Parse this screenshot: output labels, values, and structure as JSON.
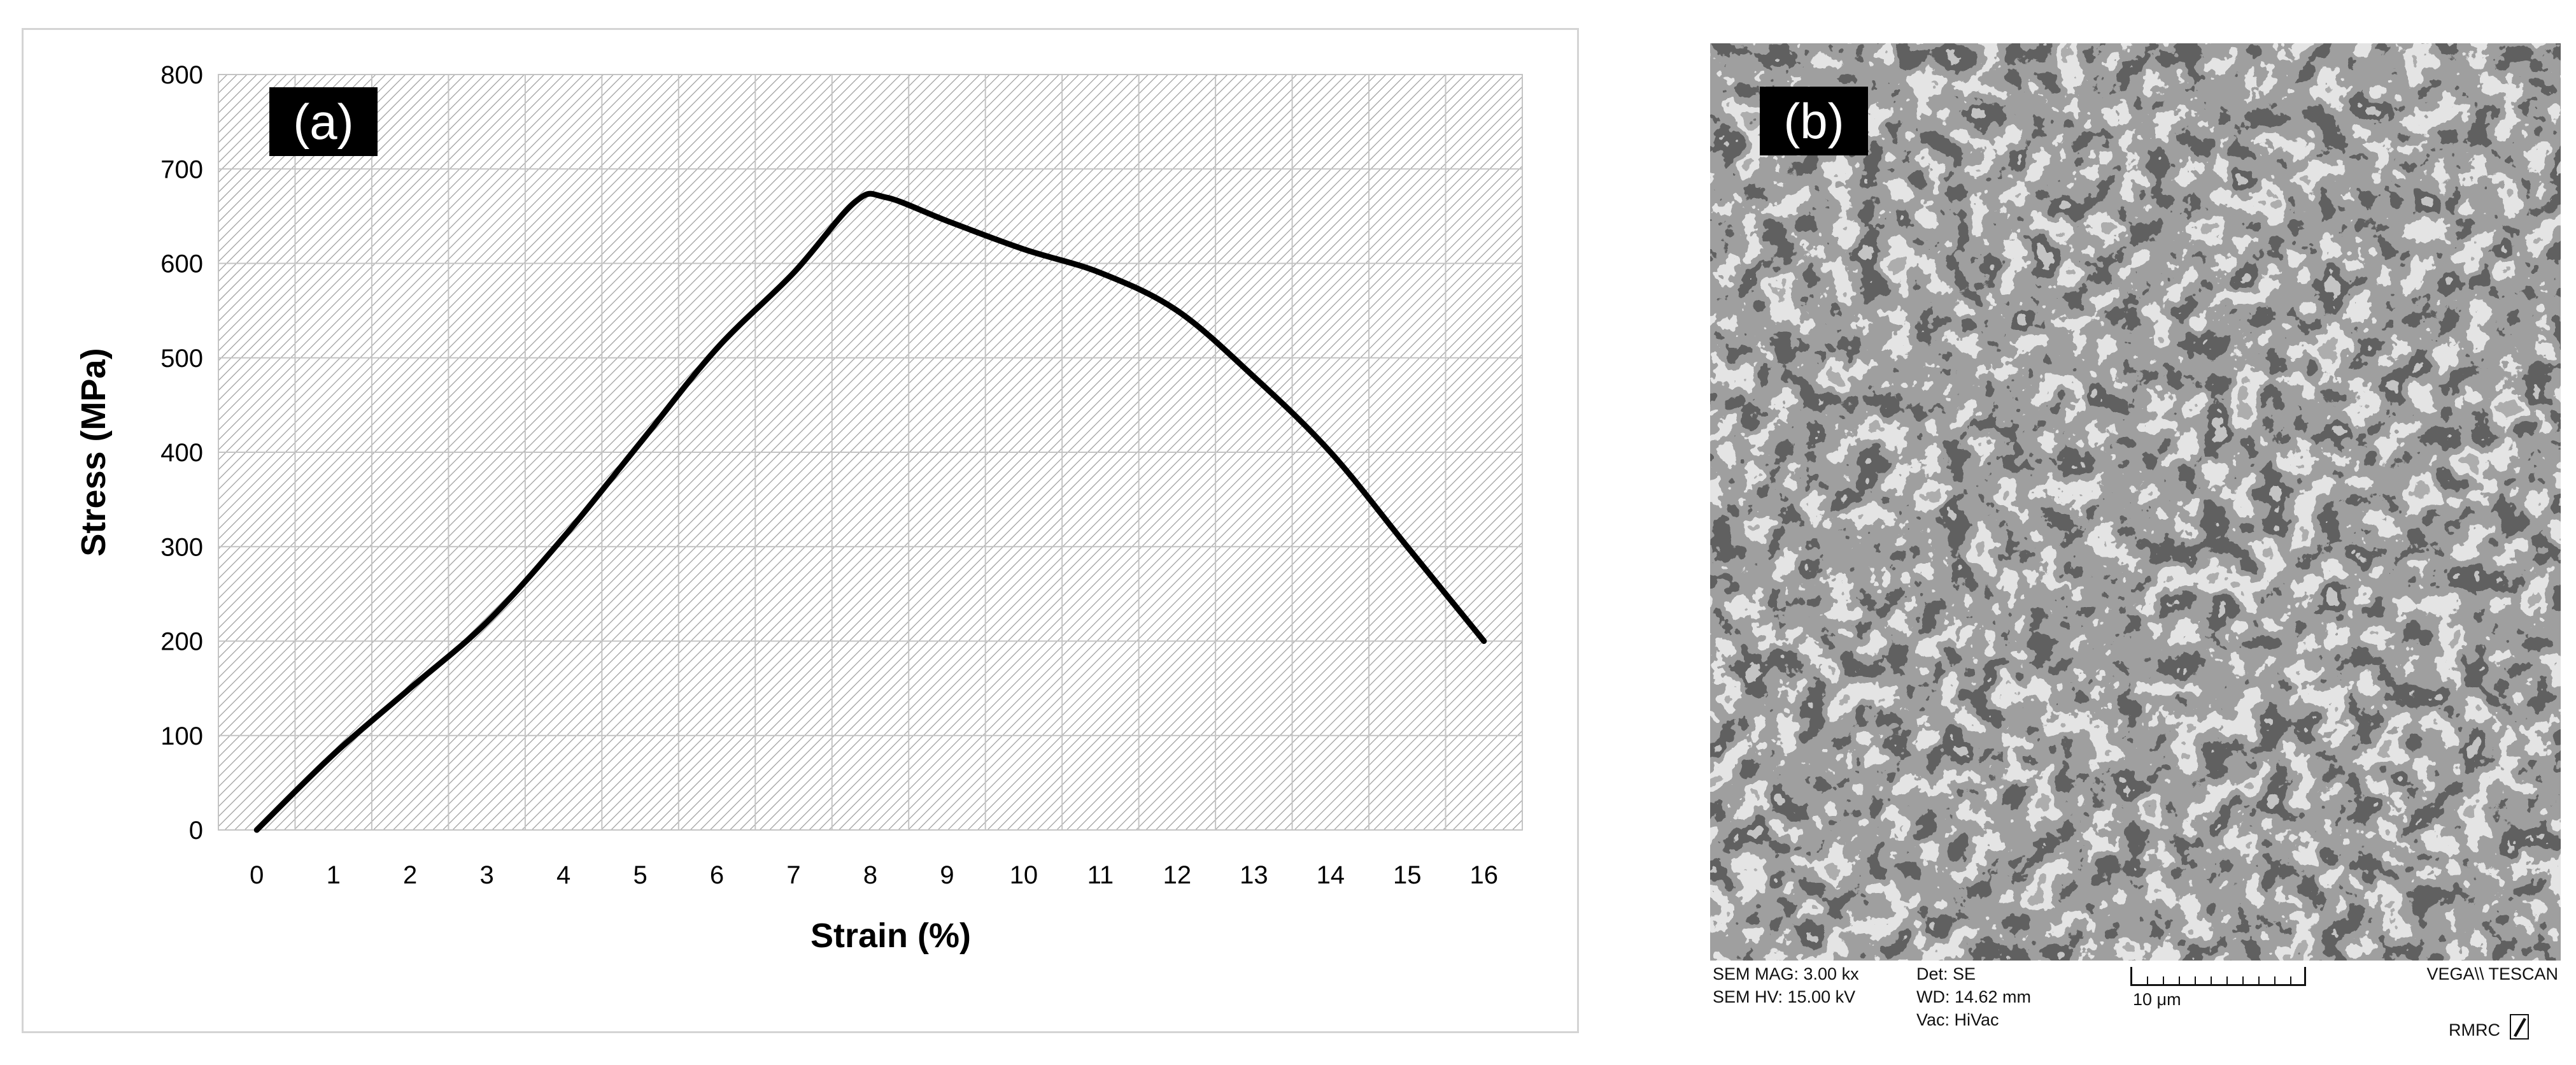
{
  "panel_a": {
    "label": "(a)",
    "chart_data": {
      "type": "line",
      "title": "",
      "xlabel": "Strain (%)",
      "ylabel": "Stress (MPa)",
      "xlim": [
        0,
        16
      ],
      "ylim": [
        0,
        800
      ],
      "xticks": [
        0,
        1,
        2,
        3,
        4,
        5,
        6,
        7,
        8,
        9,
        10,
        11,
        12,
        13,
        14,
        15,
        16
      ],
      "yticks": [
        0,
        100,
        200,
        300,
        400,
        500,
        600,
        700,
        800
      ],
      "grid": true,
      "legend": "none",
      "series": [
        {
          "color": "#000000",
          "x": [
            0,
            1,
            2,
            3,
            4,
            5,
            6,
            7,
            7.8,
            8.2,
            9,
            10,
            11,
            12,
            13,
            14,
            15,
            16
          ],
          "y": [
            0,
            80,
            150,
            220,
            310,
            410,
            510,
            590,
            665,
            670,
            645,
            615,
            590,
            550,
            480,
            400,
            300,
            200
          ]
        }
      ]
    }
  },
  "panel_b": {
    "label": "(b)",
    "sem_info": {
      "mag": "SEM MAG: 3.00 kx",
      "hv": "SEM HV: 15.00 kV",
      "det": "Det: SE",
      "wd": "WD: 14.62 mm",
      "vac": "Vac: HiVac",
      "scale": "10 μm",
      "brand": "VEGA\\\\ TESCAN",
      "lab": "RMRC"
    }
  }
}
